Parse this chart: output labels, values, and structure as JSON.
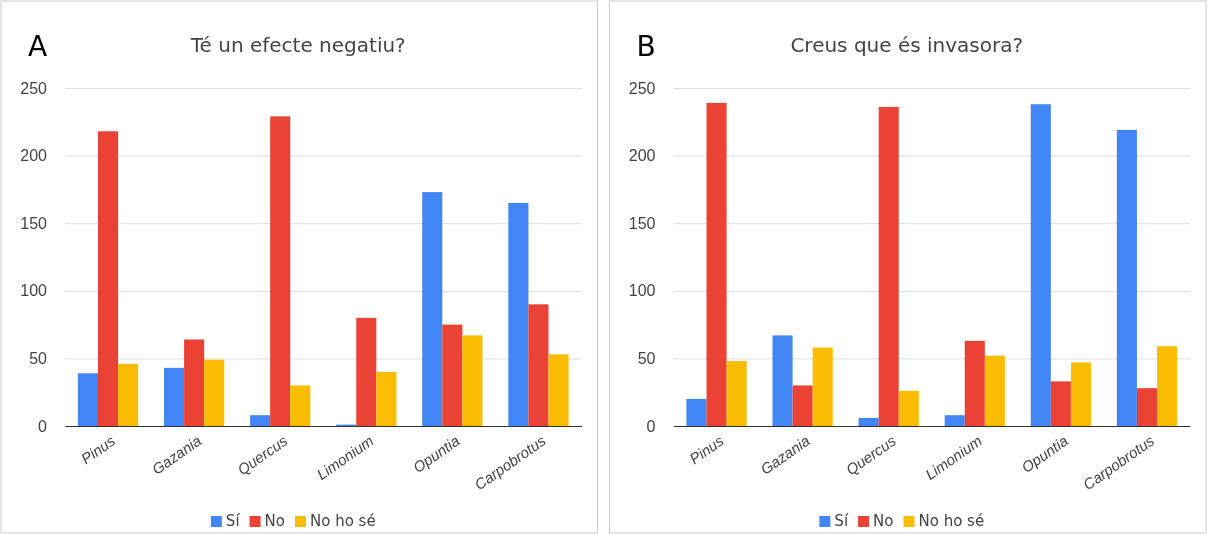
{
  "chart_data": [
    {
      "type": "bar",
      "title": "Té un efecte negatiu?",
      "annotations": [
        "A"
      ],
      "categories": [
        "Pinus",
        "Gazania",
        "Quercus",
        "Limonium",
        "Opuntia",
        "Carpobrotus"
      ],
      "series": [
        {
          "name": "Sí",
          "color": "#4285f4",
          "values": [
            39,
            43,
            8,
            1,
            173,
            165
          ]
        },
        {
          "name": "No",
          "color": "#ea4335",
          "values": [
            218,
            64,
            229,
            80,
            75,
            90
          ]
        },
        {
          "name": "No ho sé",
          "color": "#fbbc04",
          "values": [
            46,
            49,
            30,
            40,
            67,
            53
          ]
        }
      ],
      "ylim": [
        0,
        250
      ],
      "yticks": [
        0,
        50,
        100,
        150,
        200,
        250
      ],
      "grid": "y",
      "legend": "bottom"
    },
    {
      "type": "bar",
      "title": "Creus que és invasora?",
      "annotations": [
        "B"
      ],
      "categories": [
        "Pinus",
        "Gazania",
        "Quercus",
        "Limonium",
        "Opuntia",
        "Carpobrotus"
      ],
      "series": [
        {
          "name": "Sí",
          "color": "#4285f4",
          "values": [
            20,
            67,
            6,
            8,
            238,
            219
          ]
        },
        {
          "name": "No",
          "color": "#ea4335",
          "values": [
            239,
            30,
            236,
            63,
            33,
            28
          ]
        },
        {
          "name": "No ho sé",
          "color": "#fbbc04",
          "values": [
            48,
            58,
            26,
            52,
            47,
            59
          ]
        }
      ],
      "ylim": [
        0,
        250
      ],
      "yticks": [
        0,
        50,
        100,
        150,
        200,
        250
      ],
      "grid": "y",
      "legend": "bottom"
    }
  ]
}
